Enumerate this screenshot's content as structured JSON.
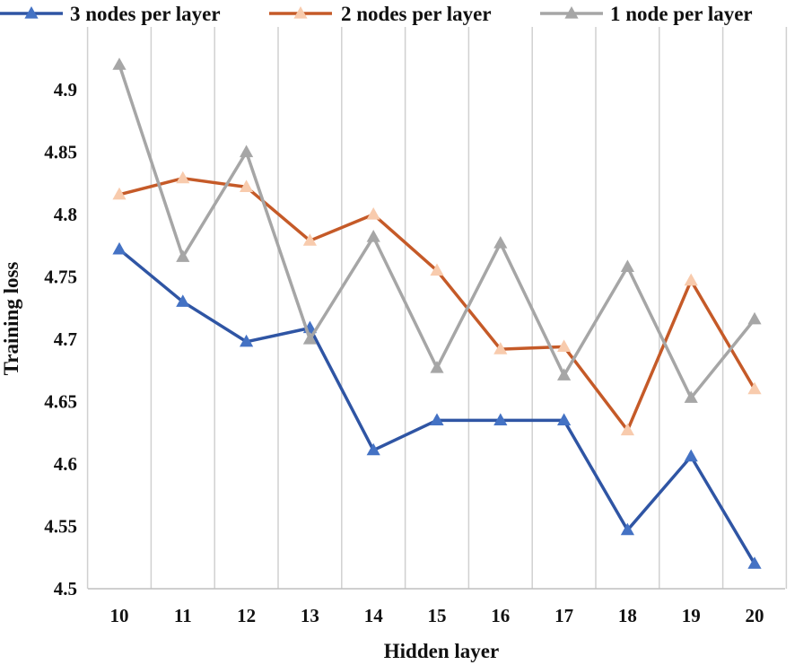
{
  "chart_data": {
    "type": "line",
    "title": "",
    "xlabel": "Hidden layer",
    "ylabel": "Training loss",
    "x": [
      10,
      11,
      12,
      13,
      14,
      15,
      16,
      17,
      18,
      19,
      20
    ],
    "ylim": [
      4.5,
      4.9
    ],
    "yticks": [
      4.5,
      4.55,
      4.6,
      4.65,
      4.7,
      4.75,
      4.8,
      4.85,
      4.9
    ],
    "ytick_labels": [
      "4.5",
      "4.55",
      "4.6",
      "4.65",
      "4.7",
      "4.75",
      "4.8",
      "4.85",
      "4.9"
    ],
    "grid": "vertical",
    "legend": "top",
    "series": [
      {
        "name": "3 nodes per layer",
        "color": "#2f55a4",
        "marker_color": "#4472c4",
        "marker": "triangle",
        "values": [
          4.772,
          4.73,
          4.698,
          4.709,
          4.611,
          4.635,
          4.635,
          4.635,
          4.547,
          4.606,
          4.52
        ]
      },
      {
        "name": "2 nodes per layer",
        "color": "#c55a28",
        "marker_color": "#f8cbad",
        "marker": "triangle",
        "values": [
          4.816,
          4.829,
          4.822,
          4.779,
          4.8,
          4.755,
          4.692,
          4.694,
          4.627,
          4.747,
          4.66
        ]
      },
      {
        "name": "1 node per layer",
        "color": "#a6a6a6",
        "marker_color": "#a6a6a6",
        "marker": "triangle",
        "values": [
          4.92,
          4.766,
          4.85,
          4.7,
          4.782,
          4.677,
          4.777,
          4.671,
          4.758,
          4.653,
          4.716
        ]
      }
    ]
  }
}
